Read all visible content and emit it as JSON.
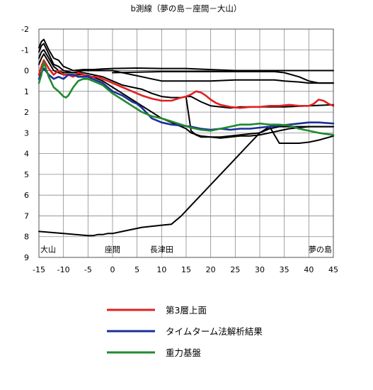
{
  "chart_data": {
    "type": "line",
    "title": "b測線（夢の島－座間－大山）",
    "xlabel": "",
    "ylabel": "",
    "xlim": [
      -15,
      45
    ],
    "ylim": [
      -2,
      9
    ],
    "y_inverted": true,
    "grid": true,
    "x_ticks": [
      -15,
      -10,
      -5,
      0,
      5,
      10,
      15,
      20,
      25,
      30,
      35,
      40,
      45
    ],
    "y_ticks": [
      -2,
      -1,
      0,
      1,
      2,
      3,
      4,
      5,
      6,
      7,
      8,
      9
    ],
    "place_labels": [
      {
        "text": "大山",
        "x": -15
      },
      {
        "text": "座間",
        "x": 0
      },
      {
        "text": "長津田",
        "x": 10
      },
      {
        "text": "夢の島",
        "x": 45
      }
    ],
    "legend_position": "bottom",
    "series": [
      {
        "name": "第3層上面",
        "color": "#e02020",
        "x": [
          -15,
          -14.5,
          -14,
          -13,
          -12,
          -11,
          -10,
          -9,
          -8,
          -7,
          -6,
          -5,
          -4,
          -3,
          -2,
          -1,
          0,
          2,
          4,
          6,
          8,
          10,
          12,
          14,
          15,
          16,
          17,
          18,
          19,
          20,
          21,
          22,
          24,
          26,
          28,
          30,
          32,
          34,
          36,
          38,
          40,
          41,
          42,
          43,
          44,
          45
        ],
        "y": [
          0.2,
          -0.2,
          -0.5,
          -0.1,
          0.2,
          0.0,
          0.2,
          0.2,
          0.3,
          0.1,
          0.2,
          0.3,
          0.3,
          0.3,
          0.4,
          0.5,
          0.6,
          0.8,
          1.0,
          1.2,
          1.35,
          1.45,
          1.45,
          1.3,
          1.25,
          1.15,
          1.0,
          1.05,
          1.2,
          1.4,
          1.55,
          1.65,
          1.75,
          1.8,
          1.75,
          1.75,
          1.7,
          1.7,
          1.65,
          1.7,
          1.7,
          1.6,
          1.4,
          1.45,
          1.6,
          1.7
        ]
      },
      {
        "name": "タイムターム法解析結果",
        "color": "#1c2f9a",
        "x": [
          -15,
          -14.5,
          -14,
          -13,
          -12,
          -11,
          -10,
          -9,
          -8,
          -7,
          -6,
          -5,
          -4,
          -3,
          -2,
          -1,
          0,
          2,
          4,
          5,
          6,
          8,
          10,
          12,
          14,
          16,
          18,
          20,
          22,
          24,
          26,
          28,
          30,
          32,
          34,
          36,
          38,
          40,
          42,
          45
        ],
        "y": [
          0.4,
          0.1,
          -0.1,
          0.2,
          0.4,
          0.3,
          0.4,
          0.2,
          0.2,
          0.3,
          0.3,
          0.3,
          0.4,
          0.5,
          0.6,
          0.8,
          1.0,
          1.2,
          1.5,
          1.6,
          1.8,
          2.3,
          2.5,
          2.6,
          2.65,
          2.7,
          2.8,
          2.85,
          2.8,
          2.85,
          2.8,
          2.8,
          2.75,
          2.7,
          2.65,
          2.6,
          2.55,
          2.5,
          2.5,
          2.55
        ]
      },
      {
        "name": "重力基盤",
        "color": "#1f8a2e",
        "x": [
          -15,
          -14.5,
          -14,
          -13,
          -12,
          -11,
          -10,
          -9.5,
          -9,
          -8,
          -7,
          -6,
          -5,
          -4,
          -3,
          -2,
          -1,
          0,
          2,
          4,
          6,
          8,
          10,
          12,
          14,
          16,
          18,
          20,
          22,
          24,
          26,
          28,
          30,
          32,
          34,
          36,
          38,
          40,
          42,
          45
        ],
        "y": [
          0.6,
          0.2,
          -0.4,
          0.3,
          0.8,
          1.0,
          1.25,
          1.3,
          1.2,
          0.8,
          0.5,
          0.4,
          0.4,
          0.5,
          0.6,
          0.7,
          0.9,
          1.1,
          1.4,
          1.7,
          2.0,
          2.2,
          2.3,
          2.45,
          2.6,
          2.75,
          2.85,
          2.9,
          2.8,
          2.7,
          2.6,
          2.6,
          2.55,
          2.6,
          2.6,
          2.65,
          2.8,
          2.9,
          3.0,
          3.1
        ]
      },
      {
        "color": "#000000",
        "x": [
          -15,
          -14.5,
          -14,
          -13,
          -12,
          -11,
          -10,
          -8,
          -6,
          -4,
          -2,
          0,
          5,
          10,
          15,
          20,
          25,
          30,
          35,
          40,
          45
        ],
        "y": [
          -1.1,
          -1.4,
          -1.5,
          -1.0,
          -0.6,
          -0.5,
          -0.2,
          0.0,
          -0.05,
          -0.05,
          -0.08,
          -0.1,
          -0.12,
          -0.1,
          -0.1,
          -0.05,
          0.0,
          0.0,
          0.0,
          0.0,
          0.0
        ]
      },
      {
        "color": "#000000",
        "x": [
          -15,
          -14.5,
          -14,
          -13,
          -12,
          -11,
          -10,
          -8,
          -6,
          -4,
          -2,
          0,
          2,
          4,
          6,
          8,
          10,
          15,
          20,
          25,
          30,
          33,
          35,
          38,
          40,
          42,
          45
        ],
        "y": [
          -0.9,
          -1.2,
          -1.3,
          -0.8,
          -0.3,
          -0.2,
          0.0,
          0.1,
          0.0,
          0.0,
          0.0,
          0.0,
          0.1,
          0.2,
          0.3,
          0.4,
          0.5,
          0.5,
          0.5,
          0.45,
          0.45,
          0.45,
          0.5,
          0.55,
          0.6,
          0.6,
          0.6
        ]
      },
      {
        "color": "#000000",
        "x": [
          -15,
          -14.5,
          -14,
          -13,
          -12,
          -11,
          -10,
          -8,
          -6,
          -4,
          -2,
          0,
          2,
          4,
          6,
          8,
          10,
          12,
          14,
          15,
          16,
          18,
          20,
          24,
          26,
          30,
          35,
          40,
          45
        ],
        "y": [
          -0.6,
          -0.9,
          -1.0,
          -0.6,
          -0.2,
          0.0,
          0.1,
          0.1,
          0.1,
          0.2,
          0.3,
          0.5,
          0.7,
          0.8,
          0.9,
          1.1,
          1.25,
          1.3,
          1.3,
          1.25,
          1.25,
          1.5,
          1.7,
          1.8,
          1.75,
          1.75,
          1.75,
          1.7,
          1.65
        ]
      },
      {
        "color": "#000000",
        "x": [
          -15,
          -14.5,
          -14,
          -13,
          -12,
          -11,
          -10,
          -8,
          -6,
          -4,
          -2,
          0,
          2,
          4,
          6,
          8,
          10,
          12,
          14,
          15,
          16,
          18,
          20,
          22,
          24,
          26,
          28,
          30,
          32,
          34,
          36,
          40,
          45
        ],
        "y": [
          -0.3,
          -0.6,
          -0.8,
          -0.4,
          0.0,
          0.1,
          0.2,
          0.2,
          0.2,
          0.3,
          0.5,
          0.8,
          1.1,
          1.4,
          1.7,
          2.0,
          2.3,
          2.5,
          2.7,
          2.8,
          3.0,
          3.15,
          3.2,
          3.25,
          3.2,
          3.15,
          3.15,
          3.1,
          3.0,
          2.9,
          2.8,
          2.7,
          2.7
        ]
      },
      {
        "color": "#000000",
        "x": [
          15,
          16,
          17,
          18,
          20,
          22,
          24,
          26,
          28,
          30,
          32,
          34,
          36,
          40,
          45
        ],
        "y": [
          1.3,
          2.9,
          3.1,
          3.2,
          3.2,
          3.2,
          3.15,
          3.1,
          3.05,
          3.0,
          2.8,
          2.7,
          2.7,
          2.7,
          2.7
        ]
      },
      {
        "color": "#000000",
        "x": [
          0,
          10,
          20,
          30,
          33,
          35,
          38,
          40,
          42,
          45
        ],
        "y": [
          0.1,
          0.05,
          0.05,
          0.05,
          0.05,
          0.1,
          0.3,
          0.5,
          0.6,
          0.6
        ]
      },
      {
        "color": "#000000",
        "x": [
          -15,
          -10,
          -5,
          -4,
          -3,
          -2,
          -1,
          0,
          2,
          4,
          6,
          8,
          10,
          12,
          14,
          16,
          18,
          20,
          22,
          24,
          26,
          28,
          30,
          32,
          34,
          36,
          38,
          40,
          42,
          45
        ],
        "y": [
          7.75,
          7.85,
          7.95,
          7.95,
          7.9,
          7.9,
          7.85,
          7.85,
          7.75,
          7.65,
          7.55,
          7.5,
          7.45,
          7.4,
          7.0,
          6.5,
          6.0,
          5.5,
          5.0,
          4.5,
          4.0,
          3.5,
          3.0,
          2.7,
          3.5,
          3.5,
          3.5,
          3.45,
          3.35,
          3.15
        ]
      }
    ]
  }
}
